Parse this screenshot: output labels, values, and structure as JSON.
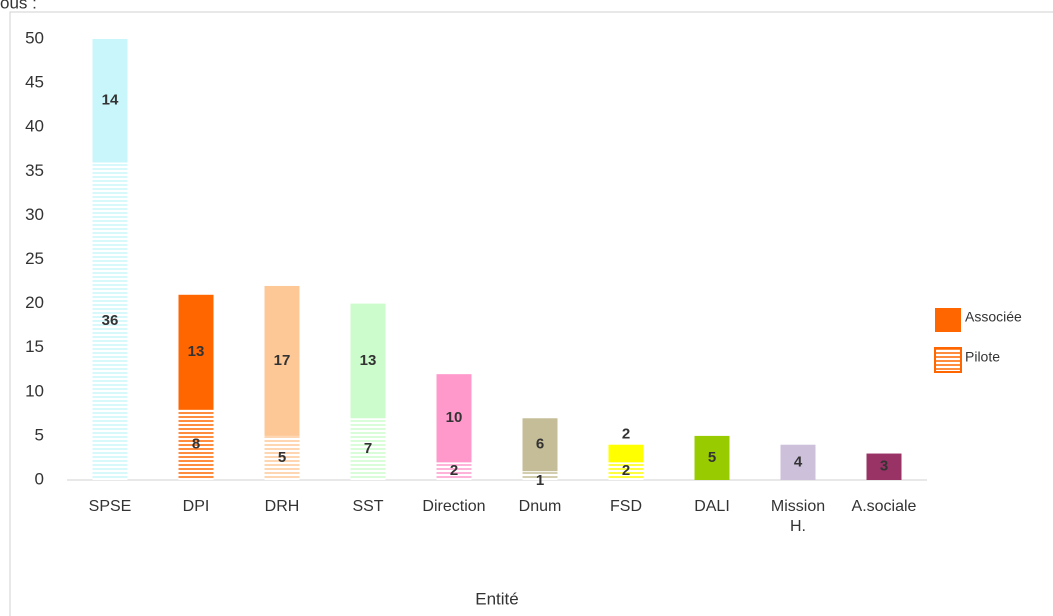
{
  "chart_data": {
    "type": "stacked_bar",
    "caption": "ous :",
    "x_label": "Entité",
    "categories": [
      "SPSE",
      "DPI",
      "DRH",
      "SST",
      "Direction",
      "Dnum",
      "FSD",
      "DALI",
      "Mission H.",
      "A.sociale"
    ],
    "colors": [
      "#c9f6fb",
      "#ff6600",
      "#fdc896",
      "#ccfccc",
      "#ff99cc",
      "#c5bd97",
      "#ffff00",
      "#99cc00",
      "#ccc0da",
      "#993366"
    ],
    "series": [
      {
        "name": "Pilote",
        "color": "#ff6600",
        "hatched": true,
        "values": [
          36,
          8,
          5,
          7,
          2,
          1,
          2,
          null,
          null,
          null
        ]
      },
      {
        "name": "Associée",
        "color": "#ff6600",
        "hatched": false,
        "values": [
          14,
          13,
          17,
          13,
          10,
          6,
          2,
          5,
          4,
          3
        ]
      }
    ],
    "ylim": [
      0,
      50
    ],
    "yticks": [
      0,
      5,
      10,
      15,
      20,
      25,
      30,
      35,
      40,
      45,
      50
    ],
    "legend": "right"
  }
}
